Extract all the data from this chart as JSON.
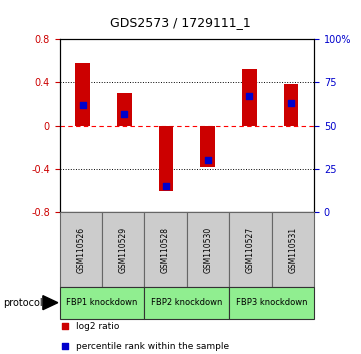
{
  "title": "GDS2573 / 1729111_1",
  "samples": [
    "GSM110526",
    "GSM110529",
    "GSM110528",
    "GSM110530",
    "GSM110527",
    "GSM110531"
  ],
  "log2_ratio": [
    0.58,
    0.3,
    -0.6,
    -0.38,
    0.52,
    0.38
  ],
  "percentile_rank": [
    62,
    57,
    15,
    30,
    67,
    63
  ],
  "bar_color": "#cc0000",
  "dot_color": "#0000cc",
  "ylim_left": [
    -0.8,
    0.8
  ],
  "ylim_right": [
    0,
    100
  ],
  "yticks_left": [
    -0.8,
    -0.4,
    0,
    0.4,
    0.8
  ],
  "yticks_right": [
    0,
    25,
    50,
    75,
    100
  ],
  "dotted_lines": [
    0.4,
    -0.4
  ],
  "protocols": [
    {
      "label": "FBP1 knockdown",
      "samples": [
        0,
        1
      ],
      "color": "#90ee90"
    },
    {
      "label": "FBP2 knockdown",
      "samples": [
        2,
        3
      ],
      "color": "#90ee90"
    },
    {
      "label": "FBP3 knockdown",
      "samples": [
        4,
        5
      ],
      "color": "#90ee90"
    }
  ],
  "legend_items": [
    {
      "label": "log2 ratio",
      "color": "#cc0000"
    },
    {
      "label": "percentile rank within the sample",
      "color": "#0000cc"
    }
  ],
  "protocol_label": "protocol",
  "bar_width": 0.35,
  "sample_box_color": "#cccccc",
  "sample_box_edge_color": "#666666",
  "title_fontsize": 9,
  "tick_fontsize": 7,
  "sample_fontsize": 5.5,
  "protocol_fontsize": 6,
  "legend_fontsize": 6.5
}
